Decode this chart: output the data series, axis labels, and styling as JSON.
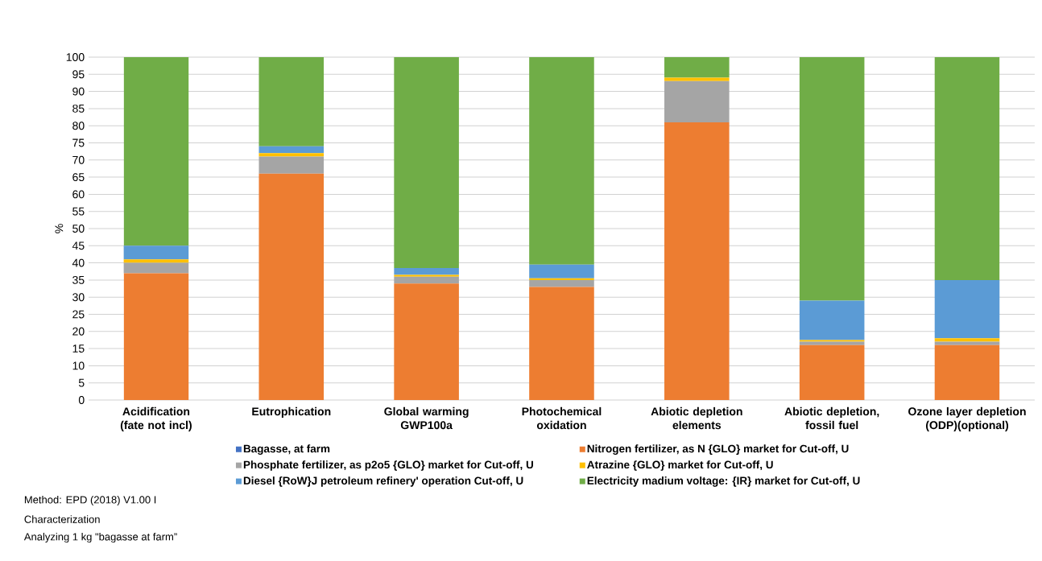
{
  "chart_data": {
    "type": "bar",
    "stacked": true,
    "ylabel": "%",
    "categories": [
      "Acidification (fate not incl)",
      "Eutrophication",
      "Global warming GWP100a",
      "Photochemical oxidation",
      "Abiotic depletion elements",
      "Abiotic depletion, fossil fuel",
      "Ozone layer depletion (ODP)(optional)"
    ],
    "series": [
      {
        "name": "Bagasse, at farm",
        "color": "#4472c4",
        "values": [
          0,
          0,
          0,
          0,
          0,
          0,
          0
        ]
      },
      {
        "name": "Nitrogen fertilizer, as N {GLO} market for Cut-off, U",
        "color": "#ed7d31",
        "values": [
          37,
          66,
          34,
          33,
          81,
          16,
          16
        ]
      },
      {
        "name": "Phosphate fertilizer, as p2o5 {GLO} market for Cut-off, U",
        "color": "#a5a5a5",
        "values": [
          3,
          5,
          2,
          2,
          12,
          1,
          1
        ]
      },
      {
        "name": "Atrazine {GLO} market for Cut-off, U",
        "color": "#ffc000",
        "values": [
          1,
          1,
          0.5,
          0.5,
          1,
          0.5,
          1
        ]
      },
      {
        "name": "Diesel {RoW}J petroleum refinery' operation Cut-off, U",
        "color": "#5b9bd5",
        "values": [
          4,
          2,
          2,
          4,
          0,
          11.5,
          17
        ]
      },
      {
        "name": "Electricity madium voltage: {IR} market for Cut-off, U",
        "color": "#70ad47",
        "values": [
          55,
          26,
          61.5,
          60.5,
          6,
          71,
          65
        ]
      }
    ],
    "ylim": [
      0,
      100
    ],
    "yticks": [
      0,
      5,
      10,
      15,
      20,
      25,
      30,
      35,
      40,
      45,
      50,
      55,
      60,
      65,
      70,
      75,
      80,
      85,
      90,
      95,
      100
    ],
    "grid": "y",
    "legend": "bottom",
    "annotations": [
      "Method: EPD (2018) V1.00 I",
      "Characterization",
      "Analyzing 1 kg \"bagasse at farm”"
    ]
  }
}
